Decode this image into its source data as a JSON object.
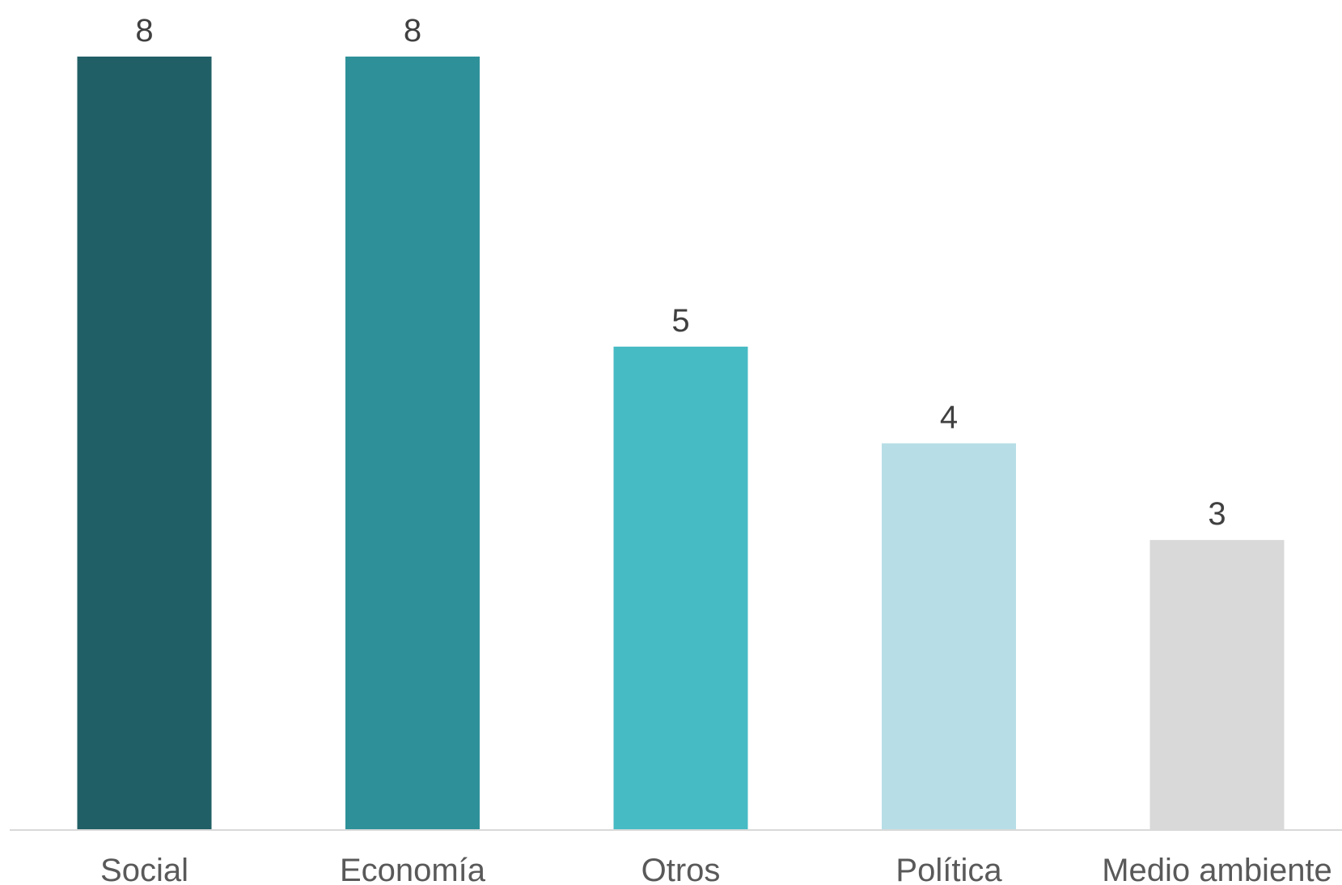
{
  "chart_data": {
    "type": "bar",
    "title": "",
    "xlabel": "",
    "ylabel": "",
    "categories": [
      "Social",
      "Economía",
      "Otros",
      "Política",
      "Medio ambiente"
    ],
    "values": [
      8,
      8,
      5,
      4,
      3
    ],
    "data_labels": [
      "8",
      "8",
      "5",
      "4",
      "3"
    ],
    "colors": [
      "#215F66",
      "#2E9199",
      "#47BBC4",
      "#B7DEE7",
      "#D9D9D9"
    ],
    "axis_color": "#D9D9D9",
    "ylim": [
      0,
      8
    ],
    "grid": false,
    "legend": "none"
  }
}
